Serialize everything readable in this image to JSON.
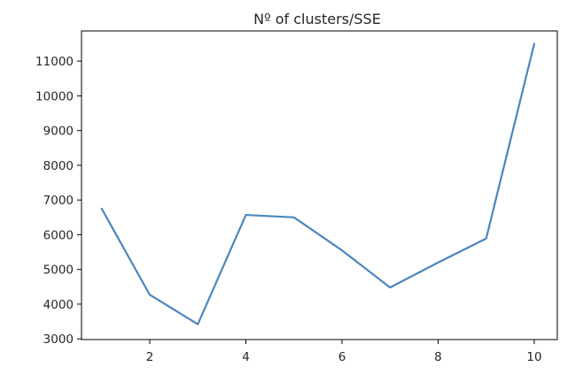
{
  "chart_data": {
    "type": "line",
    "title": "Nº of clusters/SSE",
    "xlabel": "",
    "ylabel": "",
    "x": [
      1,
      2,
      3,
      4,
      5,
      6,
      7,
      8,
      9,
      10
    ],
    "series": [
      {
        "values": [
          6750,
          4270,
          3420,
          6570,
          6500,
          5550,
          4480,
          5200,
          5890,
          11500
        ],
        "color": "#4c86bd"
      }
    ],
    "xlim": [
      0.58,
      10.48
    ],
    "ylim": [
      2980,
      11870
    ],
    "xticks": [
      2,
      4,
      6,
      8,
      10
    ],
    "yticks": [
      3000,
      4000,
      5000,
      6000,
      7000,
      8000,
      9000,
      10000,
      11000
    ],
    "grid": false,
    "legend": "none"
  }
}
